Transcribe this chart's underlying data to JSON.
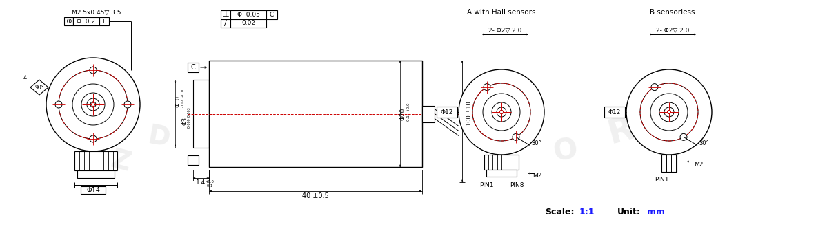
{
  "bg_color": "#ffffff",
  "line_color": "#000000",
  "red_color": "#cc0000",
  "label_A": "A with Hall sensors",
  "label_B": "B sensorless",
  "scale_label": "Scale:",
  "scale_val": "1:1",
  "unit_label": "Unit:",
  "unit_val": "mm"
}
